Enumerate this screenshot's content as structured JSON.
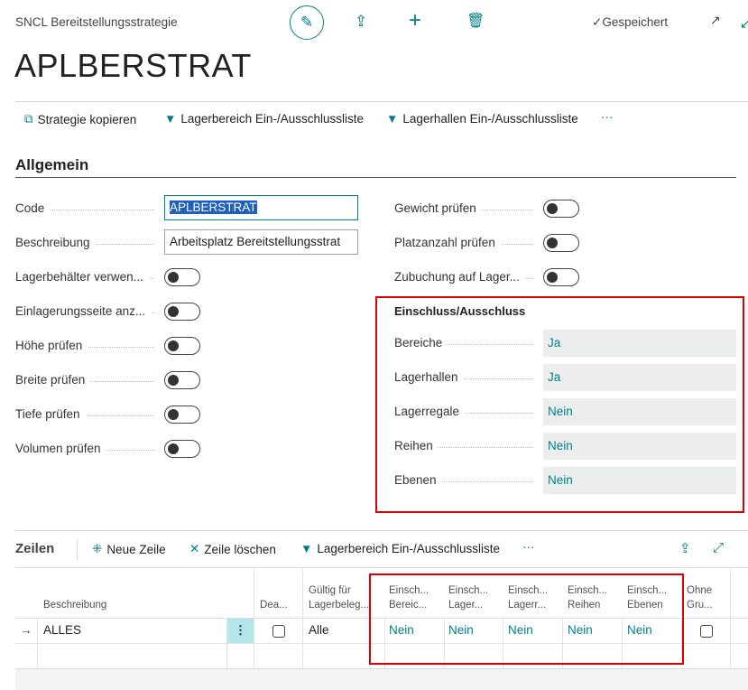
{
  "header": {
    "breadcrumb": "SNCL Bereitstellungsstrategie",
    "title": "APLBERSTRAT",
    "status": "Gespeichert"
  },
  "actions": [
    {
      "label": "Strategie kopieren",
      "icon": "copy-icon"
    },
    {
      "label": "Lagerbereich Ein-/Ausschlussliste",
      "icon": "filter-edit-icon"
    },
    {
      "label": "Lagerhallen Ein-/Ausschlussliste",
      "icon": "filter-edit-icon"
    },
    {
      "label": "···"
    }
  ],
  "general": {
    "title": "Allgemein",
    "left": [
      {
        "label": "Code",
        "value": "APLBERSTRAT"
      },
      {
        "label": "Beschreibung",
        "value": "Arbeitsplatz Bereitstellungsstrat"
      },
      {
        "label": "Lagerbehälter verwen...",
        "toggle": false
      },
      {
        "label": "Einlagerungsseite anz...",
        "toggle": false
      },
      {
        "label": "Höhe prüfen",
        "toggle": false
      },
      {
        "label": "Breite prüfen",
        "toggle": false
      },
      {
        "label": "Tiefe prüfen",
        "toggle": false
      },
      {
        "label": "Volumen prüfen",
        "toggle": false
      }
    ],
    "right": [
      {
        "label": "Gewicht prüfen",
        "toggle": false
      },
      {
        "label": "Platzanzahl prüfen",
        "toggle": false
      },
      {
        "label": "Zubuchung auf Lager...",
        "toggle": false
      }
    ],
    "group": {
      "title": "Einschluss/Ausschluss",
      "fields": [
        {
          "label": "Bereiche",
          "value": "Ja"
        },
        {
          "label": "Lagerhallen",
          "value": "Ja"
        },
        {
          "label": "Lagerregale",
          "value": "Nein"
        },
        {
          "label": "Reihen",
          "value": "Nein"
        },
        {
          "label": "Ebenen",
          "value": "Nein"
        }
      ]
    }
  },
  "lines": {
    "title": "Zeilen",
    "actions": [
      "Neue Zeile",
      "Zeile löschen",
      "Lagerbereich Ein-/Ausschlussliste",
      "···"
    ],
    "columns": [
      "Beschreibung",
      "Dea...",
      "Gültig für\nLagerbeleg...",
      "Einsch...\nBereic...",
      "Einsch...\nLager...",
      "Einsch...\nLagerr...",
      "Einsch...\nReihen",
      "Einsch...\nEbenen",
      "Ohne\nGru..."
    ],
    "rows": [
      {
        "beschreibung": "ALLES",
        "dea": false,
        "gueltig": "Alle",
        "e1": "Nein",
        "e2": "Nein",
        "e3": "Nein",
        "e4": "Nein",
        "e5": "Nein",
        "ohne": false
      }
    ]
  },
  "colors": {
    "accent": "#00808a",
    "highlight": "#ff0000"
  }
}
